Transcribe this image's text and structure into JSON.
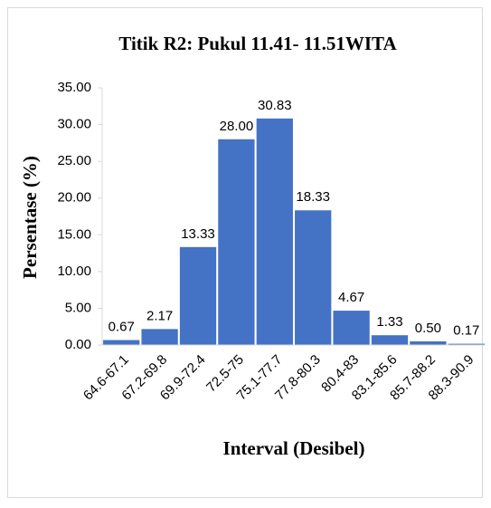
{
  "chart_data": {
    "type": "bar",
    "title": "Titik R2: Pukul 11.41- 11.51WITA",
    "x_label": "Interval (Desibel)",
    "y_label": "Persentase (%)",
    "categories": [
      "64.6-67.1",
      "67.2-69.8",
      "69.9-72.4",
      "72.5-75",
      "75.1-77.7",
      "77.8-80.3",
      "80.4-83",
      "83.1-85.6",
      "85.7-88.2",
      "88.3-90.9"
    ],
    "values": [
      0.67,
      2.17,
      13.33,
      28,
      30.83,
      18.33,
      4.67,
      1.33,
      0.5,
      0.17
    ],
    "value_labels": [
      "0.67",
      "2.17",
      "13.33",
      "28.00",
      "30.83",
      "18.33",
      "4.67",
      "1.33",
      "0.50",
      "0.17"
    ],
    "color": "#4472c4",
    "ylim": [
      0,
      35
    ],
    "yticks": [
      {
        "value": 0,
        "label": "0.00"
      },
      {
        "value": 5,
        "label": "5.00"
      },
      {
        "value": 10,
        "label": "10.00"
      },
      {
        "value": 15,
        "label": "15.00"
      },
      {
        "value": 20,
        "label": "20.00"
      },
      {
        "value": 25,
        "label": "25.00"
      },
      {
        "value": 30,
        "label": "30.00"
      },
      {
        "value": 35,
        "label": "35.00"
      }
    ],
    "grid": false
  }
}
